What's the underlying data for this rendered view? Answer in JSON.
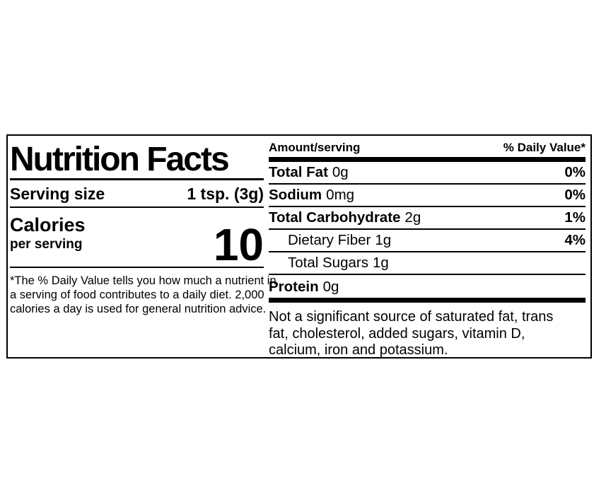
{
  "label": {
    "title": "Nutrition Facts",
    "serving": {
      "label": "Serving size",
      "value": "1 tsp. (3g)"
    },
    "calories": {
      "label": "Calories",
      "sublabel": "per serving",
      "value": "10"
    },
    "footnote_lines": [
      "*The % Daily Value tells you how much a nutrient in",
      "a serving of food contributes to a daily diet. 2,000",
      "calories a day is used for general nutrition advice."
    ],
    "table": {
      "amount_header": "Amount/serving",
      "dv_header": "% Daily Value*",
      "rows": [
        {
          "name": "Total Fat",
          "amount": "0g",
          "dv": "0%"
        },
        {
          "name": "Sodium",
          "amount": "0mg",
          "dv": "0%"
        },
        {
          "name": "Total Carbohydrate",
          "amount": "2g",
          "dv": "1%"
        },
        {
          "name": "Dietary Fiber",
          "amount": "1g",
          "dv": "4%"
        },
        {
          "name": "Total Sugars",
          "amount": "1g",
          "dv": ""
        },
        {
          "name": "Protein",
          "amount": "0g",
          "dv": ""
        }
      ]
    },
    "disclaimer_lines": [
      "Not a significant source of saturated fat, trans",
      "fat, cholesterol, added sugars, vitamin D,",
      "calcium, iron and potassium."
    ],
    "colors": {
      "text": "#000000",
      "background": "#ffffff",
      "rule": "#000000"
    }
  }
}
